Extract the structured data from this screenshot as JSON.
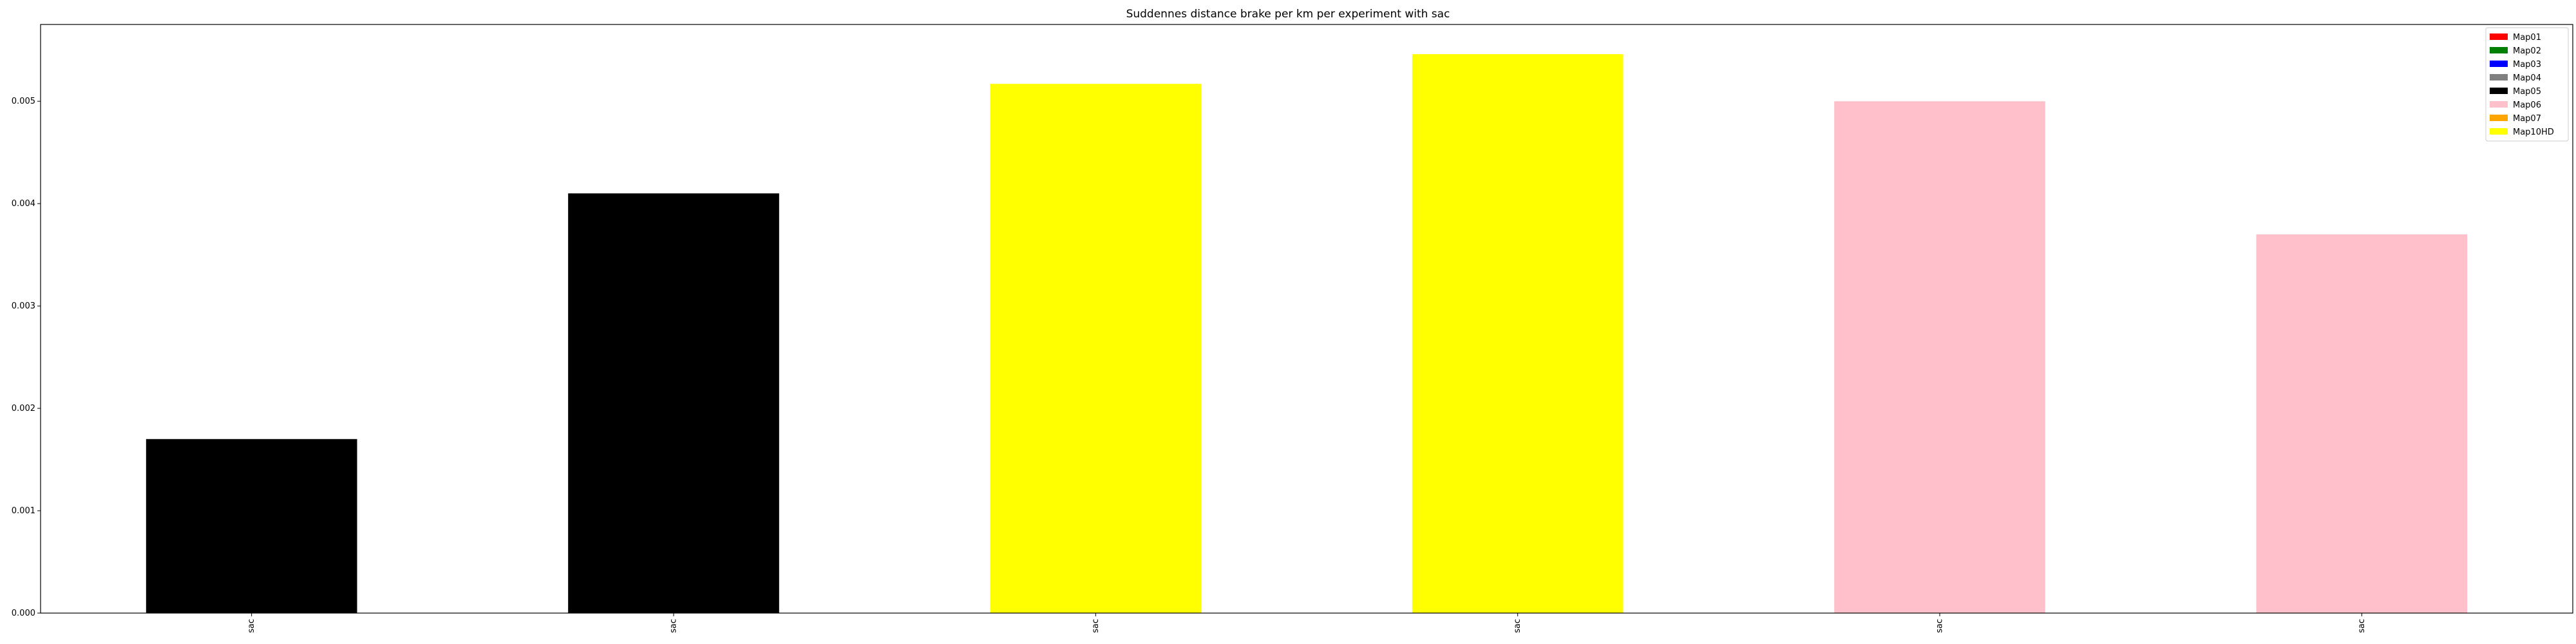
{
  "chart_data": {
    "type": "bar",
    "title": "Suddennes distance brake per km per experiment with sac",
    "xlabel": "",
    "ylabel": "",
    "categories": [
      "sac",
      "sac",
      "sac",
      "sac",
      "sac",
      "sac"
    ],
    "values": [
      0.0017,
      0.0041,
      0.00517,
      0.00546,
      0.005,
      0.0037
    ],
    "bar_colors": [
      "#000000",
      "#000000",
      "#ffff00",
      "#ffff00",
      "#ffc0cb",
      "#ffc0cb"
    ],
    "ylim": [
      0,
      0.00575
    ],
    "yticks": [
      "0.000",
      "0.001",
      "0.002",
      "0.003",
      "0.004",
      "0.005"
    ],
    "grid": false,
    "legend_position": "top-right",
    "legend": [
      {
        "name": "Map01",
        "color": "#ff0000"
      },
      {
        "name": "Map02",
        "color": "#008000"
      },
      {
        "name": "Map03",
        "color": "#0000ff"
      },
      {
        "name": "Map04",
        "color": "#808080"
      },
      {
        "name": "Map05",
        "color": "#000000"
      },
      {
        "name": "Map06",
        "color": "#ffc0cb"
      },
      {
        "name": "Map07",
        "color": "#ffa500"
      },
      {
        "name": "Map10HD",
        "color": "#ffff00"
      }
    ]
  }
}
